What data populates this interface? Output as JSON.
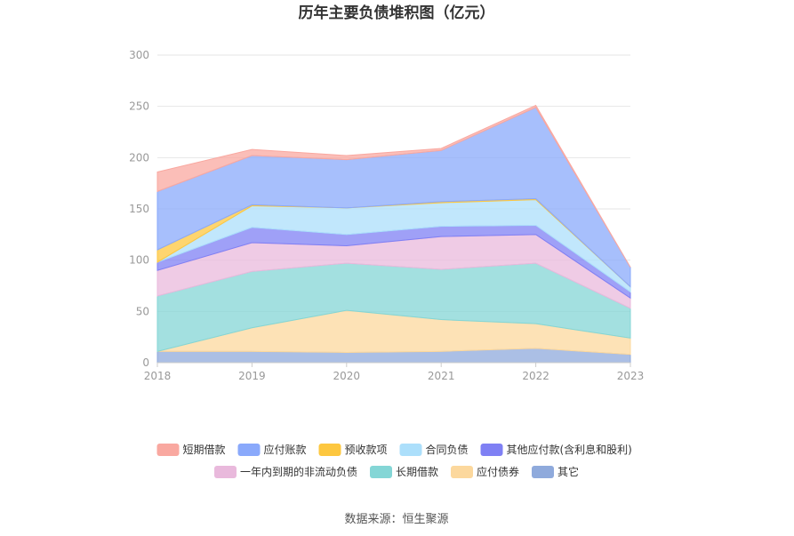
{
  "chart_data": {
    "type": "area",
    "stacked": true,
    "title": "历年主要负债堆积图（亿元）",
    "source": "数据来源：恒生聚源",
    "x": [
      "2018",
      "2019",
      "2020",
      "2021",
      "2022",
      "2023"
    ],
    "ylim": [
      0,
      300
    ],
    "yticks": [
      "0",
      "50",
      "100",
      "150",
      "200",
      "250",
      "300"
    ],
    "grid": true,
    "legend_position": "bottom",
    "series": [
      {
        "name": "其它",
        "color": "#8faadc",
        "values": [
          11,
          11,
          10,
          11,
          14,
          8
        ]
      },
      {
        "name": "应付债券",
        "color": "#fcd89d",
        "values": [
          0,
          23,
          41,
          31,
          24,
          16
        ]
      },
      {
        "name": "长期借款",
        "color": "#84d6d6",
        "values": [
          54,
          55,
          46,
          49,
          59,
          29
        ]
      },
      {
        "name": "一年内到期的非流动负债",
        "color": "#e9b9dc",
        "values": [
          25,
          28,
          17,
          32,
          28,
          10
        ]
      },
      {
        "name": "其他应付款(含利息和股利)",
        "color": "#7f80f4",
        "values": [
          8,
          15,
          11,
          10,
          9,
          6
        ]
      },
      {
        "name": "合同负债",
        "color": "#acdffb",
        "values": [
          0,
          21,
          26,
          23,
          25,
          5
        ]
      },
      {
        "name": "预收款项",
        "color": "#fdc73f",
        "values": [
          12,
          1,
          0,
          1,
          1,
          0
        ]
      },
      {
        "name": "应付账款",
        "color": "#8aa9fb",
        "values": [
          57,
          48,
          47,
          50,
          89,
          19
        ]
      },
      {
        "name": "短期借款",
        "color": "#f9a8a0",
        "values": [
          19,
          6,
          4,
          2,
          2,
          0
        ]
      }
    ],
    "legend_order": [
      "短期借款",
      "应付账款",
      "预收款项",
      "合同负债",
      "其他应付款(含利息和股利)",
      "一年内到期的非流动负债",
      "长期借款",
      "应付债券",
      "其它"
    ]
  }
}
